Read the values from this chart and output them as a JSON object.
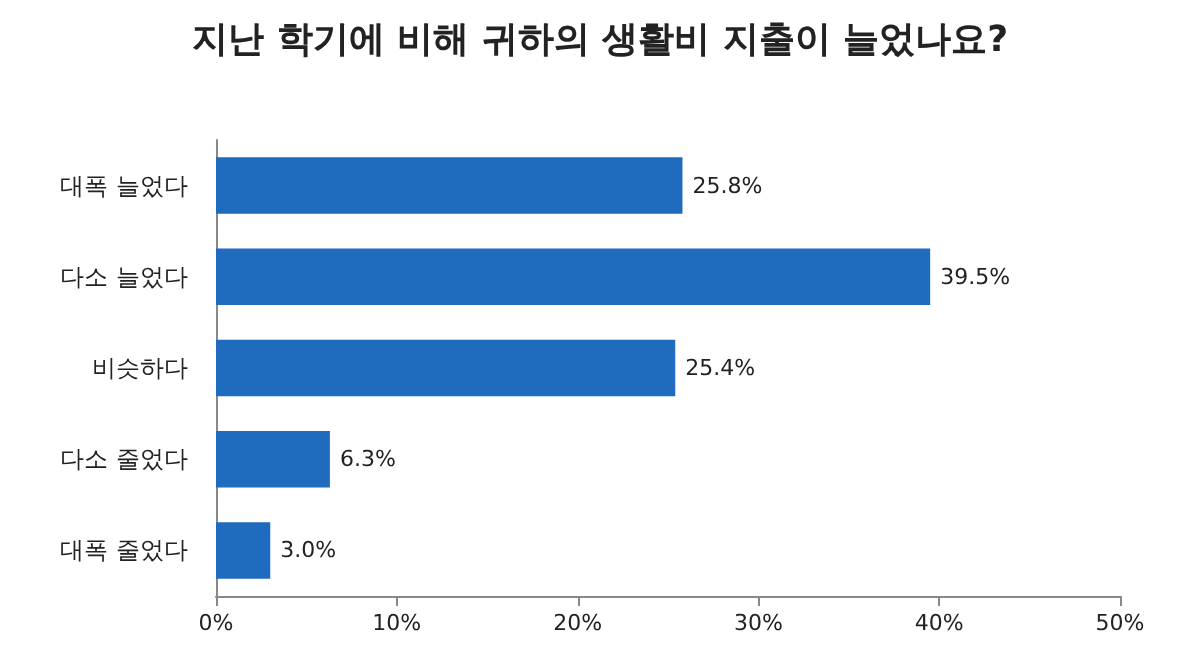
{
  "chart_data": {
    "type": "bar",
    "orientation": "horizontal",
    "title": "지난 학기에 비해 귀하의 생활비 지출이 늘었나요?",
    "categories": [
      "대폭 늘었다",
      "다소 늘었다",
      "비슷하다",
      "다소 줄었다",
      "대폭 줄었다"
    ],
    "values": [
      25.8,
      39.5,
      25.4,
      6.3,
      3.0
    ],
    "value_labels": [
      "25.8%",
      "39.5%",
      "25.4%",
      "6.3%",
      "3.0%"
    ],
    "color": "#1f6bbd",
    "xlim": [
      0,
      50
    ],
    "xticks": [
      {
        "value": 0,
        "label": "0%"
      },
      {
        "value": 10,
        "label": "10%"
      },
      {
        "value": 20,
        "label": "20%"
      },
      {
        "value": 30,
        "label": "30%"
      },
      {
        "value": 40,
        "label": "40%"
      },
      {
        "value": 50,
        "label": "50%"
      }
    ],
    "grid": false
  }
}
